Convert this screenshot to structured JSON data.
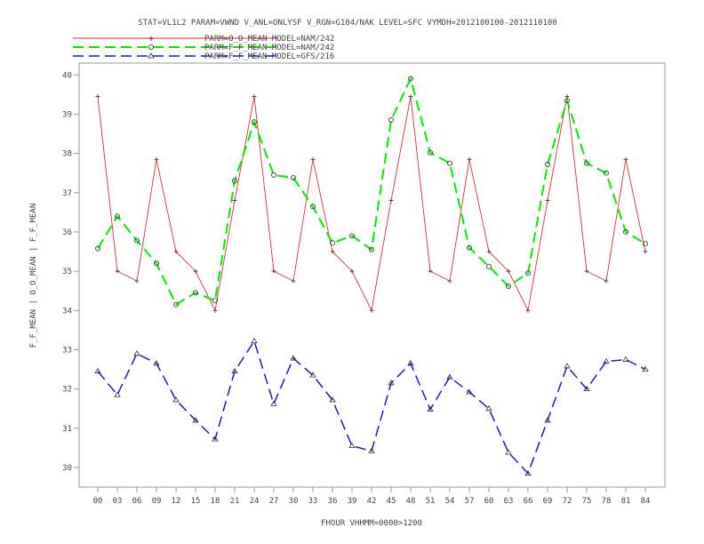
{
  "chart_data": {
    "type": "line",
    "title": "STAT=VL1L2 PARAM=VWND V_ANL=ONLYSF V_RGN=G104/NAK LEVEL=SFC VYMDH=2012100100-2012110100",
    "xlabel": "FHOUR VHHMM=0000>1200",
    "ylabel": "F_F_MEAN | O_O_MEAN | F_F_MEAN",
    "ylim": [
      29.5,
      40.3
    ],
    "yticks": [
      30,
      31,
      32,
      33,
      34,
      35,
      36,
      37,
      38,
      39,
      40
    ],
    "grid": false,
    "legend_position": "top-left",
    "categories": [
      "00",
      "03",
      "06",
      "09",
      "12",
      "15",
      "18",
      "21",
      "24",
      "27",
      "30",
      "33",
      "36",
      "39",
      "42",
      "45",
      "48",
      "51",
      "54",
      "57",
      "60",
      "63",
      "66",
      "69",
      "72",
      "75",
      "78",
      "81",
      "84"
    ],
    "series": [
      {
        "name": "PARM=O_O_MEAN MODEL=NAM/242",
        "color": "#e03030",
        "marker": "plus",
        "dash": "solid",
        "values": [
          39.45,
          35.0,
          34.75,
          37.85,
          35.5,
          35.0,
          34.0,
          36.8,
          39.45,
          35.0,
          34.75,
          37.85,
          35.5,
          35.0,
          34.0,
          36.8,
          39.45,
          35.0,
          34.75,
          37.85,
          35.5,
          35.0,
          34.0,
          36.8,
          39.45,
          35.0,
          34.75,
          37.85,
          35.5
        ]
      },
      {
        "name": "PARM=F_F_MEAN MODEL=NAM/242",
        "color": "#00ee00",
        "marker": "circle",
        "dash": "long-dash",
        "values": [
          35.58,
          36.4,
          35.78,
          35.2,
          34.15,
          34.45,
          34.25,
          37.3,
          38.8,
          37.45,
          37.38,
          36.65,
          35.72,
          35.9,
          35.55,
          38.85,
          39.9,
          38.02,
          37.75,
          35.6,
          35.12,
          34.62,
          34.95,
          37.72,
          39.35,
          37.75,
          37.5,
          36.0,
          35.7
        ]
      },
      {
        "name": "PARM=F_F_MEAN MODEL=GFS/216",
        "color": "#1a1acc",
        "marker": "triangle",
        "dash": "long-dash",
        "values": [
          32.45,
          31.85,
          32.9,
          32.65,
          31.72,
          31.2,
          30.72,
          32.45,
          33.22,
          31.62,
          32.78,
          32.35,
          31.72,
          30.55,
          30.42,
          32.15,
          32.65,
          31.48,
          32.3,
          31.92,
          31.5,
          30.38,
          29.85,
          31.2,
          32.58,
          32.0,
          32.7,
          32.75,
          32.5
        ]
      }
    ]
  }
}
